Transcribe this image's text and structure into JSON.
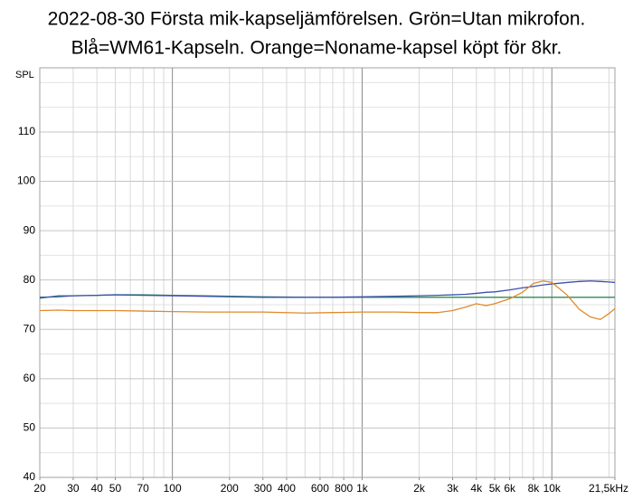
{
  "chart_data": {
    "type": "line",
    "title": [
      "2022-08-30 Första mik-kapseljämförelsen. Grön=Utan mikrofon.",
      "Blå=WM61-Kapseln. Orange=Noname-kapsel köpt för 8kr."
    ],
    "y_label": "SPL",
    "x_scale": "log",
    "xlim": [
      20,
      21500
    ],
    "ylim": [
      40,
      123
    ],
    "xticks": [
      20,
      30,
      40,
      50,
      70,
      100,
      200,
      300,
      400,
      600,
      800,
      {
        "value": 1000,
        "label": "1k"
      },
      {
        "value": 2000,
        "label": "2k"
      },
      {
        "value": 3000,
        "label": "3k"
      },
      {
        "value": 4000,
        "label": "4k"
      },
      {
        "value": 5000,
        "label": "5k"
      },
      {
        "value": 6000,
        "label": "6k"
      },
      {
        "value": 8000,
        "label": "8k"
      },
      {
        "value": 10000,
        "label": "10k"
      },
      {
        "value": 21500,
        "label": "21,5kHz"
      }
    ],
    "x_major_grid": [
      100,
      1000,
      10000
    ],
    "x_minor_grid": [
      20,
      30,
      40,
      50,
      60,
      70,
      80,
      90,
      200,
      300,
      400,
      500,
      600,
      700,
      800,
      900,
      2000,
      3000,
      4000,
      5000,
      6000,
      7000,
      8000,
      9000,
      20000
    ],
    "yticks": [
      40,
      50,
      60,
      70,
      80,
      90,
      100,
      110
    ],
    "y_minor_grid": [
      45,
      55,
      65,
      75,
      85,
      95,
      105,
      115,
      120
    ],
    "grid": true,
    "x": [
      20,
      25,
      30,
      40,
      50,
      70,
      100,
      150,
      200,
      300,
      500,
      700,
      1000,
      1500,
      2000,
      2500,
      3000,
      3500,
      4000,
      4500,
      5000,
      6000,
      7000,
      8000,
      9000,
      10000,
      12000,
      14000,
      16000,
      18000,
      20000,
      21500
    ],
    "series": [
      {
        "name": "Grön",
        "color": "#2e8b57",
        "values": [
          76.3,
          76.8,
          76.8,
          76.9,
          77,
          77,
          76.9,
          76.8,
          76.7,
          76.6,
          76.5,
          76.5,
          76.5,
          76.5,
          76.5,
          76.5,
          76.5,
          76.5,
          76.5,
          76.5,
          76.5,
          76.5,
          76.5,
          76.5,
          76.5,
          76.5,
          76.5,
          76.5,
          76.5,
          76.5,
          76.5,
          76.5
        ]
      },
      {
        "name": "Blå",
        "color": "#3c4fb0",
        "values": [
          76.5,
          76.6,
          76.8,
          76.9,
          77,
          76.9,
          76.8,
          76.7,
          76.6,
          76.5,
          76.5,
          76.5,
          76.6,
          76.7,
          76.8,
          76.9,
          77,
          77.1,
          77.3,
          77.5,
          77.6,
          78,
          78.4,
          78.7,
          79,
          79.2,
          79.5,
          79.7,
          79.8,
          79.7,
          79.6,
          79.5
        ]
      },
      {
        "name": "Orange",
        "color": "#e08a2a",
        "values": [
          73.8,
          73.9,
          73.8,
          73.8,
          73.8,
          73.7,
          73.6,
          73.5,
          73.5,
          73.5,
          73.3,
          73.4,
          73.5,
          73.5,
          73.4,
          73.4,
          73.8,
          74.5,
          75.2,
          74.8,
          75.2,
          76.2,
          77.5,
          79.3,
          79.8,
          79.5,
          77,
          74,
          72.5,
          72,
          73.2,
          74.2
        ]
      }
    ]
  }
}
